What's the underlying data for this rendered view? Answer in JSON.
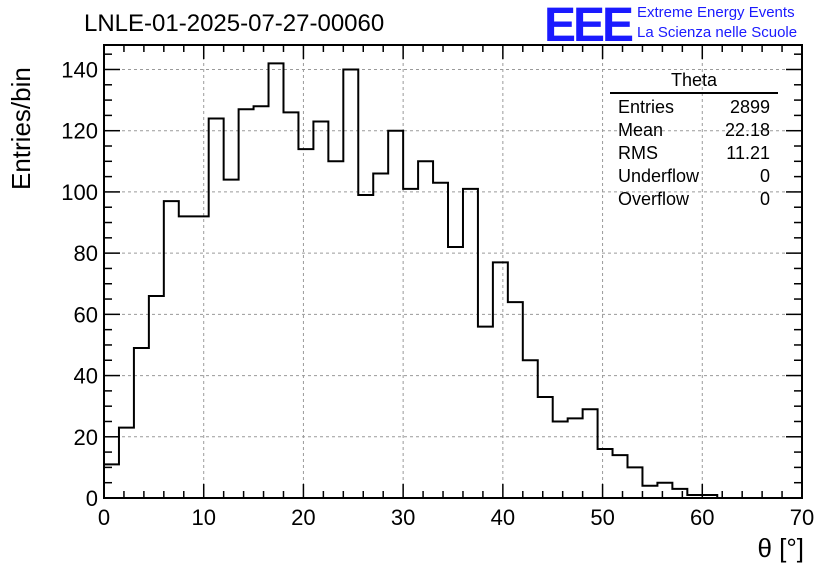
{
  "chart_data": {
    "type": "bar",
    "title": "LNLE-01-2025-07-27-00060",
    "xlabel": "θ [°]",
    "ylabel": "Entries/bin",
    "xlim": [
      0,
      70
    ],
    "ylim": [
      0,
      148
    ],
    "bin_width": 1.5,
    "grid": true,
    "x_ticks": [
      0,
      10,
      20,
      30,
      40,
      50,
      60,
      70
    ],
    "y_ticks": [
      0,
      20,
      40,
      60,
      80,
      100,
      120,
      140
    ],
    "values": [
      11,
      23,
      49,
      66,
      97,
      92,
      92,
      124,
      104,
      127,
      128,
      142,
      126,
      114,
      123,
      110,
      140,
      99,
      106,
      120,
      101,
      110,
      103,
      82,
      101,
      56,
      77,
      64,
      45,
      33,
      25,
      26,
      29,
      16,
      14,
      10,
      4,
      5,
      3,
      1,
      1,
      0,
      0,
      0,
      0,
      0,
      0
    ]
  },
  "stats_box": {
    "name": "Theta",
    "rows": [
      {
        "label": "Entries",
        "value": "2899"
      },
      {
        "label": "Mean",
        "value": "22.18"
      },
      {
        "label": "RMS",
        "value": "11.21"
      },
      {
        "label": "Underflow",
        "value": "0"
      },
      {
        "label": "Overflow",
        "value": "0"
      }
    ]
  },
  "logo": {
    "mark": "EEE",
    "line1": "Extreme Energy Events",
    "line2": "La Scienza nelle Scuole"
  },
  "colors": {
    "logo": "#1a1aff",
    "histogram": "#000000",
    "grid": "#9a9a9a"
  }
}
